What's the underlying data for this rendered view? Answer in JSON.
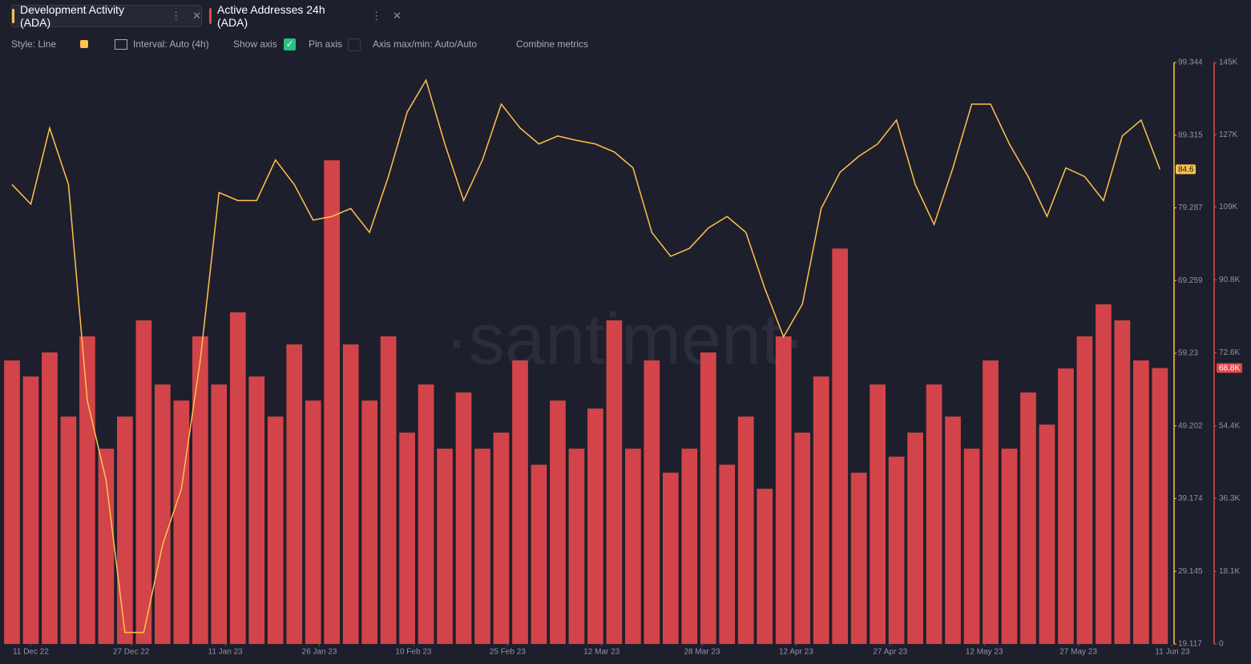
{
  "ui": {
    "toolbar": {
      "style": "Style: Line",
      "interval": "Interval: Auto (4h)",
      "show_axis": "Show axis",
      "pin_axis": "Pin axis",
      "axis_minmax": "Axis max/min: Auto/Auto",
      "combine": "Combine metrics"
    },
    "watermark": "·santiment·"
  },
  "chart_data": {
    "type": "bar_line",
    "x": [
      "2022-12-08",
      "2022-12-11",
      "2022-12-14",
      "2022-12-17",
      "2022-12-20",
      "2022-12-23",
      "2022-12-26",
      "2022-12-29",
      "2023-01-01",
      "2023-01-04",
      "2023-01-07",
      "2023-01-10",
      "2023-01-13",
      "2023-01-16",
      "2023-01-19",
      "2023-01-22",
      "2023-01-25",
      "2023-01-28",
      "2023-01-31",
      "2023-02-03",
      "2023-02-06",
      "2023-02-09",
      "2023-02-12",
      "2023-02-15",
      "2023-02-18",
      "2023-02-21",
      "2023-02-24",
      "2023-02-27",
      "2023-03-02",
      "2023-03-05",
      "2023-03-08",
      "2023-03-11",
      "2023-03-14",
      "2023-03-17",
      "2023-03-20",
      "2023-03-23",
      "2023-03-26",
      "2023-03-29",
      "2023-04-01",
      "2023-04-04",
      "2023-04-07",
      "2023-04-10",
      "2023-04-13",
      "2023-04-16",
      "2023-04-19",
      "2023-04-22",
      "2023-04-25",
      "2023-04-28",
      "2023-05-01",
      "2023-05-04",
      "2023-05-07",
      "2023-05-10",
      "2023-05-13",
      "2023-05-16",
      "2023-05-19",
      "2023-05-22",
      "2023-05-25",
      "2023-05-28",
      "2023-05-31",
      "2023-06-03",
      "2023-06-06",
      "2023-06-09"
    ],
    "xlim": [
      "2022-12-08",
      "2023-06-11"
    ],
    "xticks": [
      {
        "value": "2022-12-11",
        "label": "11 Dec 22"
      },
      {
        "value": "2022-12-27",
        "label": "27 Dec 22"
      },
      {
        "value": "2023-01-11",
        "label": "11 Jan 23"
      },
      {
        "value": "2023-01-26",
        "label": "26 Jan 23"
      },
      {
        "value": "2023-02-10",
        "label": "10 Feb 23"
      },
      {
        "value": "2023-02-25",
        "label": "25 Feb 23"
      },
      {
        "value": "2023-03-12",
        "label": "12 Mar 23"
      },
      {
        "value": "2023-03-28",
        "label": "28 Mar 23"
      },
      {
        "value": "2023-04-12",
        "label": "12 Apr 23"
      },
      {
        "value": "2023-04-27",
        "label": "27 Apr 23"
      },
      {
        "value": "2023-05-12",
        "label": "12 May 23"
      },
      {
        "value": "2023-05-27",
        "label": "27 May 23"
      },
      {
        "value": "2023-06-11",
        "label": "11 Jun 23"
      }
    ],
    "ylim": [
      19.117,
      99.344
    ],
    "yticks": [
      19.117,
      29.145,
      39.174,
      49.202,
      59.23,
      69.259,
      79.287,
      89.315,
      99.344
    ],
    "y2lim": [
      0,
      145000
    ],
    "y2ticks": [
      0,
      {
        "value": 18100,
        "label": "18.1K"
      },
      {
        "value": 36300,
        "label": "36.3K"
      },
      {
        "value": 54400,
        "label": "54.4K"
      },
      {
        "value": 72600,
        "label": "72.6K"
      },
      {
        "value": 90800,
        "label": "90.8K"
      },
      {
        "value": 109000,
        "label": "109K"
      },
      {
        "value": 127000,
        "label": "127K"
      },
      {
        "value": 145000,
        "label": "145K"
      }
    ],
    "grid": false,
    "series": [
      {
        "name": "Development Activity (ADA)",
        "type": "line",
        "axis": "y",
        "color": "#ffc24d",
        "values": [
          82.5,
          79.8,
          90.3,
          82.5,
          52.7,
          41.7,
          20.7,
          20.7,
          32.8,
          40.5,
          58.2,
          81.4,
          80.3,
          80.3,
          85.9,
          82.5,
          77.6,
          78.1,
          79.2,
          75.9,
          83.6,
          92.5,
          96.9,
          88.1,
          80.3,
          85.9,
          93.6,
          90.3,
          88.1,
          89.2,
          88.6,
          88.1,
          87.0,
          84.8,
          75.9,
          72.6,
          73.7,
          76.5,
          78.1,
          75.9,
          68.2,
          61.5,
          66.0,
          79.2,
          84.2,
          86.4,
          88.1,
          91.4,
          82.5,
          77.0,
          84.8,
          93.6,
          93.6,
          88.1,
          83.6,
          78.1,
          84.8,
          83.6,
          80.3,
          89.2,
          91.4,
          84.6
        ]
      },
      {
        "name": "Active Addresses 24h (ADA)",
        "type": "bar",
        "axis": "y2",
        "color": "#e5484d",
        "values": [
          70700,
          66700,
          72700,
          56700,
          76700,
          48700,
          56700,
          80700,
          64700,
          60700,
          76700,
          64700,
          82700,
          66700,
          56700,
          74700,
          60700,
          120600,
          74700,
          60700,
          76700,
          52700,
          64700,
          48700,
          62700,
          48700,
          52700,
          70700,
          44700,
          60700,
          48700,
          58700,
          80700,
          48700,
          70700,
          42700,
          48700,
          72700,
          44700,
          56700,
          38700,
          76700,
          52700,
          66700,
          98600,
          42700,
          64700,
          46700,
          52700,
          64700,
          56700,
          48700,
          70700,
          48700,
          62700,
          54700,
          68700,
          76700,
          84700,
          80700,
          70700,
          68800
        ]
      }
    ],
    "markers": [
      {
        "value": 84.6,
        "label": "84.6",
        "axis": "y"
      },
      {
        "value": 68800,
        "label": "68.8K",
        "axis": "y2"
      }
    ]
  }
}
